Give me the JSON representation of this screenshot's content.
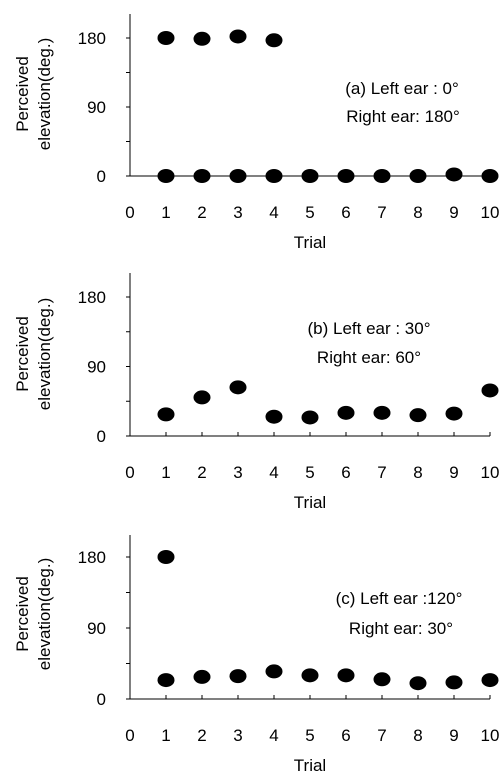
{
  "chart_data": [
    {
      "type": "scatter",
      "title": "",
      "xlabel": "Trial",
      "ylabel": [
        "Perceived",
        "elevation(deg.)"
      ],
      "xlim": [
        0,
        10
      ],
      "ylim": [
        0,
        210
      ],
      "x_ticks": [
        "0",
        "1",
        "2",
        "3",
        "4",
        "5",
        "6",
        "7",
        "8",
        "9",
        "10"
      ],
      "y_ticks": [
        "0",
        "90",
        "180"
      ],
      "grid": false,
      "annotation": [
        "(a) Left ear  : 0°",
        "Right ear: 180°"
      ],
      "series": [
        {
          "points": [
            {
              "x": 1,
              "y": 180
            },
            {
              "x": 2,
              "y": 179
            },
            {
              "x": 3,
              "y": 182
            },
            {
              "x": 4,
              "y": 177
            },
            {
              "x": 1,
              "y": 0
            },
            {
              "x": 2,
              "y": 0
            },
            {
              "x": 3,
              "y": 0
            },
            {
              "x": 4,
              "y": 0
            },
            {
              "x": 5,
              "y": 0
            },
            {
              "x": 6,
              "y": 0
            },
            {
              "x": 7,
              "y": 0
            },
            {
              "x": 8,
              "y": 0
            },
            {
              "x": 9,
              "y": 2
            },
            {
              "x": 10,
              "y": 0
            }
          ]
        }
      ]
    },
    {
      "type": "scatter",
      "title": "",
      "xlabel": "Trial",
      "ylabel": [
        "Perceived",
        "elevation(deg.)"
      ],
      "xlim": [
        0,
        10
      ],
      "ylim": [
        0,
        210
      ],
      "x_ticks": [
        "0",
        "1",
        "2",
        "3",
        "4",
        "5",
        "6",
        "7",
        "8",
        "9",
        "10"
      ],
      "y_ticks": [
        "0",
        "90",
        "180"
      ],
      "grid": false,
      "annotation": [
        "(b) Left ear  : 30°",
        "Right ear: 60°"
      ],
      "series": [
        {
          "points": [
            {
              "x": 1,
              "y": 28
            },
            {
              "x": 2,
              "y": 50
            },
            {
              "x": 3,
              "y": 63
            },
            {
              "x": 4,
              "y": 25
            },
            {
              "x": 5,
              "y": 24
            },
            {
              "x": 6,
              "y": 30
            },
            {
              "x": 7,
              "y": 30
            },
            {
              "x": 8,
              "y": 27
            },
            {
              "x": 9,
              "y": 29
            },
            {
              "x": 10,
              "y": 59
            }
          ]
        }
      ]
    },
    {
      "type": "scatter",
      "title": "",
      "xlabel": "Trial",
      "ylabel": [
        "Perceived",
        "elevation(deg.)"
      ],
      "xlim": [
        0,
        10
      ],
      "ylim": [
        0,
        210
      ],
      "x_ticks": [
        "0",
        "1",
        "2",
        "3",
        "4",
        "5",
        "6",
        "7",
        "8",
        "9",
        "10"
      ],
      "y_ticks": [
        "0",
        "90",
        "180"
      ],
      "grid": false,
      "annotation": [
        "(c) Left ear  :120°",
        "Right ear:  30°"
      ],
      "series": [
        {
          "points": [
            {
              "x": 1,
              "y": 180
            },
            {
              "x": 1,
              "y": 24
            },
            {
              "x": 2,
              "y": 28
            },
            {
              "x": 3,
              "y": 29
            },
            {
              "x": 4,
              "y": 35
            },
            {
              "x": 5,
              "y": 30
            },
            {
              "x": 6,
              "y": 30
            },
            {
              "x": 7,
              "y": 25
            },
            {
              "x": 8,
              "y": 20
            },
            {
              "x": 9,
              "y": 21
            },
            {
              "x": 10,
              "y": 24
            }
          ]
        }
      ]
    }
  ]
}
